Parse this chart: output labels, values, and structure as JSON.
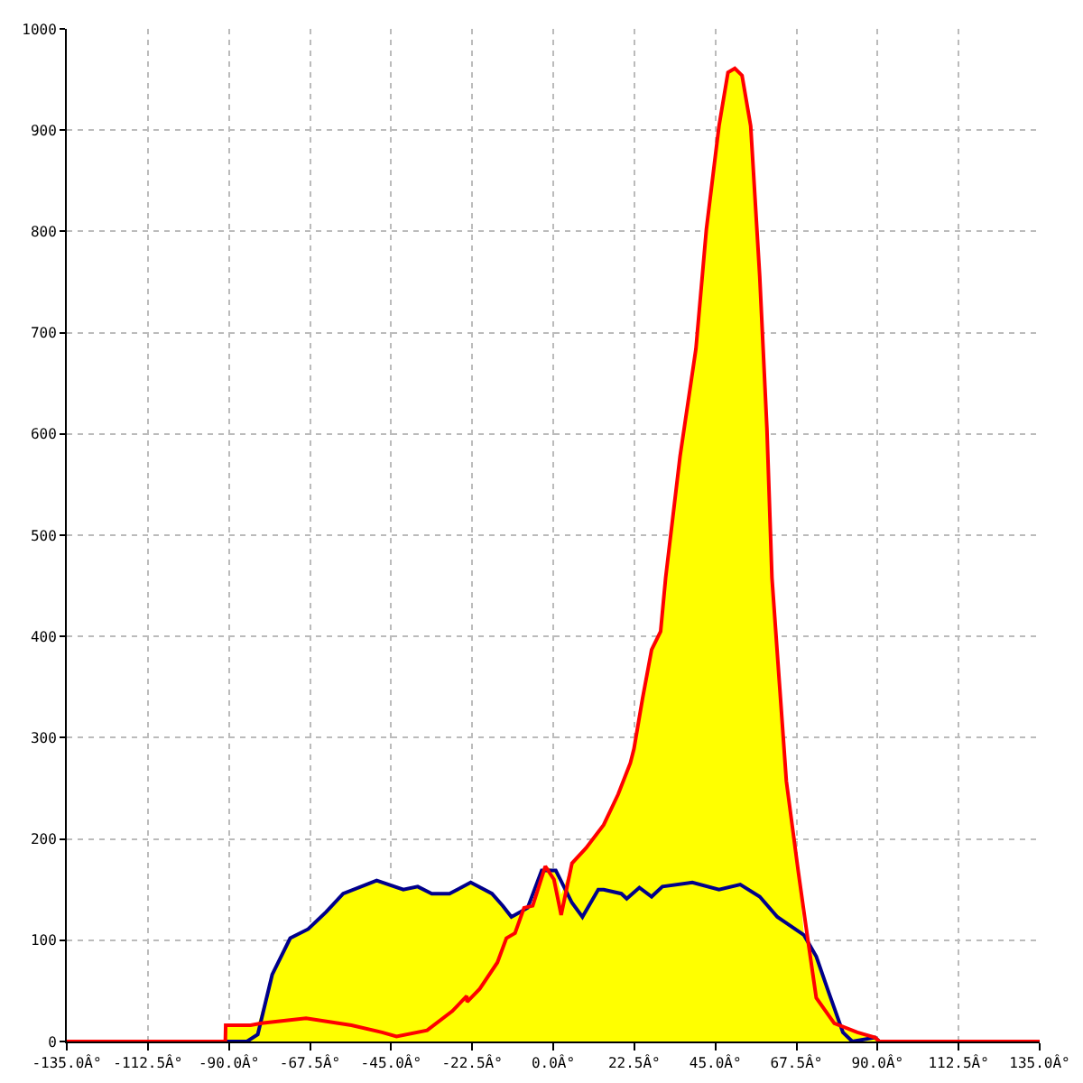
{
  "chart_data": {
    "type": "line",
    "xlim": [
      -135,
      135
    ],
    "ylim": [
      0,
      1000
    ],
    "xticks": [
      {
        "value": -135,
        "label": "-135.0Â°"
      },
      {
        "value": -112.5,
        "label": "-112.5Â°"
      },
      {
        "value": -90,
        "label": "-90.0Â°"
      },
      {
        "value": -67.5,
        "label": "-67.5Â°"
      },
      {
        "value": -45,
        "label": "-45.0Â°"
      },
      {
        "value": -22.5,
        "label": "-22.5Â°"
      },
      {
        "value": 0,
        "label": "0.0Â°"
      },
      {
        "value": 22.5,
        "label": "22.5Â°"
      },
      {
        "value": 45,
        "label": "45.0Â°"
      },
      {
        "value": 67.5,
        "label": "67.5Â°"
      },
      {
        "value": 90,
        "label": "90.0Â°"
      },
      {
        "value": 112.5,
        "label": "112.5Â°"
      },
      {
        "value": 135,
        "label": "135.0Â°"
      }
    ],
    "yticks": [
      0,
      100,
      200,
      300,
      400,
      500,
      600,
      700,
      800,
      900,
      1000
    ],
    "grid": true,
    "marker": "none",
    "line_style": "solid",
    "series": [
      {
        "type": "area",
        "color": "#ffff00",
        "x": [
          -91,
          -90.9,
          -84,
          -82,
          -78,
          -73,
          -68,
          -63,
          -58.3,
          -49,
          -41.6,
          -37.6,
          -33.7,
          -28.8,
          -22.9,
          -17,
          -14,
          -11.6,
          -7.1,
          -5.7,
          -3.2,
          -2.2,
          0.7,
          2.2,
          5.2,
          9.1,
          14,
          18,
          21.4,
          22.4,
          24.8,
          27.3,
          29.8,
          31.2,
          35.2,
          39.6,
          42.5,
          46,
          48.5,
          50.4,
          52.4,
          54.8,
          57.3,
          59.3,
          60.7,
          64.7,
          68,
          69.6,
          73,
          76.5,
          78,
          80.4,
          84.4,
          89.3,
          90.5
        ],
        "values": [
          0,
          16,
          16,
          17,
          66,
          102,
          111,
          128,
          146,
          159,
          150,
          153,
          146,
          146,
          157,
          146,
          134,
          123,
          132,
          134,
          169,
          173,
          169,
          145,
          176,
          191,
          214,
          244,
          275,
          289,
          339,
          387,
          405,
          458,
          578,
          684,
          802,
          904,
          957,
          961,
          954,
          904,
          756,
          606,
          458,
          257,
          168,
          105,
          84,
          48,
          30,
          12,
          9,
          4,
          0
        ]
      },
      {
        "color": "#00008b",
        "x": [
          -90.9,
          -85,
          -82,
          -78,
          -73,
          -68,
          -63,
          -58.3,
          -49,
          -41.6,
          -37.6,
          -33.7,
          -28.8,
          -22.9,
          -17,
          -14,
          -11.6,
          -7.1,
          -3.2,
          0.7,
          5.2,
          8.1,
          12.5,
          14,
          18.9,
          20.4,
          23.9,
          27.3,
          30.3,
          38.6,
          46,
          51.9,
          57.3,
          62.2,
          69.6,
          73,
          76.5,
          80.4,
          83,
          89.3,
          90.5
        ],
        "values": [
          0,
          0,
          7,
          66,
          102,
          111,
          128,
          146,
          159,
          150,
          153,
          146,
          146,
          157,
          146,
          134,
          123,
          132,
          169,
          169,
          137,
          123,
          150,
          150,
          146,
          141,
          152,
          143,
          153,
          157,
          150,
          155,
          143,
          123,
          105,
          84,
          48,
          9,
          0,
          4,
          0
        ]
      },
      {
        "color": "#ff0000",
        "x": [
          -135,
          -91,
          -90.9,
          -84,
          -81,
          -68.6,
          -56,
          -47.5,
          -43.5,
          -35,
          -28,
          -24,
          -23.9,
          -20.4,
          -15.5,
          -13,
          -10.6,
          -8.1,
          -5.7,
          -2.2,
          0.2,
          2.2,
          5.2,
          9.1,
          14,
          18,
          21.4,
          22.4,
          24.8,
          27.3,
          29.8,
          31.2,
          35.2,
          39.6,
          42.5,
          46,
          48.5,
          50.4,
          52.4,
          54.8,
          57.3,
          59.3,
          60.7,
          64.7,
          68,
          70.6,
          73,
          78,
          84.4,
          89.3,
          90.5,
          135
        ],
        "values": [
          0,
          0,
          16,
          16,
          18,
          23,
          16,
          9,
          5,
          11,
          30,
          45,
          39,
          52,
          78,
          102,
          107,
          132,
          134,
          173,
          160,
          125,
          176,
          191,
          214,
          244,
          275,
          289,
          339,
          387,
          405,
          458,
          578,
          684,
          802,
          904,
          957,
          961,
          954,
          904,
          756,
          606,
          458,
          257,
          168,
          102,
          43,
          18,
          9,
          4,
          0,
          0
        ]
      }
    ]
  }
}
